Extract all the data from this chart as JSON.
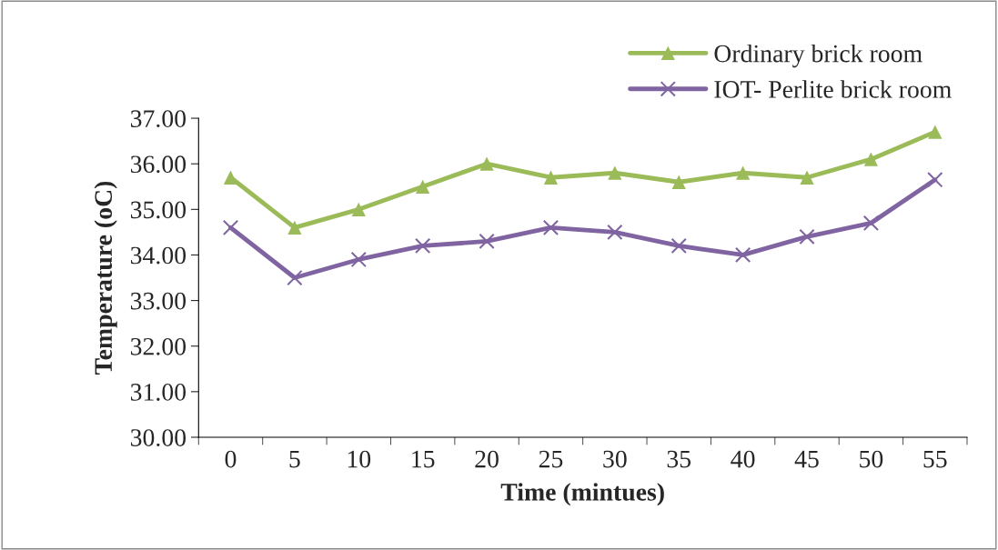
{
  "chart_data": {
    "type": "line",
    "xlabel": "Time (mintues)",
    "ylabel": "Temperature (oC)",
    "categories": [
      "0",
      "5",
      "10",
      "15",
      "20",
      "25",
      "30",
      "35",
      "40",
      "45",
      "50",
      "55"
    ],
    "series": [
      {
        "name": "Ordinary brick room",
        "color": "#9bbb59",
        "marker": "triangle",
        "values": [
          35.7,
          34.6,
          35.0,
          35.5,
          36.0,
          35.7,
          35.8,
          35.6,
          35.8,
          35.7,
          36.1,
          36.7
        ]
      },
      {
        "name": "IOT- Perlite brick room",
        "color": "#8064a2",
        "marker": "cross",
        "values": [
          34.6,
          33.5,
          33.9,
          34.2,
          34.3,
          34.6,
          34.5,
          34.2,
          34.0,
          34.4,
          34.7,
          35.65
        ]
      }
    ],
    "ylim": [
      30,
      37
    ],
    "yticks": [
      {
        "value": 30,
        "label": "30.00"
      },
      {
        "value": 31,
        "label": "31.00"
      },
      {
        "value": 32,
        "label": "32.00"
      },
      {
        "value": 33,
        "label": "33.00"
      },
      {
        "value": 34,
        "label": "34.00"
      },
      {
        "value": 35,
        "label": "35.00"
      },
      {
        "value": 36,
        "label": "36.00"
      },
      {
        "value": 37,
        "label": "37.00"
      }
    ],
    "grid": false,
    "legend": "top right",
    "line_style": "solid"
  }
}
